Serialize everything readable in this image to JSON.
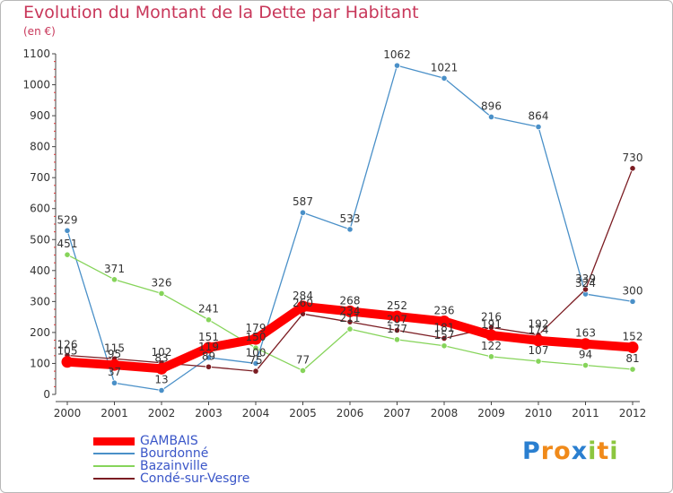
{
  "chart_data": {
    "type": "line",
    "title": "Evolution du Montant de la Dette par Habitant",
    "subtitle": "(en €)",
    "xlabel": "",
    "ylabel": "",
    "categories": [
      "2000",
      "2001",
      "2002",
      "2003",
      "2004",
      "2005",
      "2006",
      "2007",
      "2008",
      "2009",
      "2010",
      "2011",
      "2012"
    ],
    "ylim": [
      0,
      1100
    ],
    "yticks": [
      0,
      100,
      200,
      300,
      400,
      500,
      600,
      700,
      800,
      900,
      1000,
      1100
    ],
    "grid": false,
    "legend_position": "bottom-left",
    "series": [
      {
        "name": "GAMBAIS",
        "color": "#ff0000",
        "values": [
          105,
          95,
          83,
          151,
          179,
          284,
          268,
          252,
          236,
          191,
          174,
          163,
          152
        ]
      },
      {
        "name": "Bourdonné",
        "color": "#4a90c8",
        "values": [
          529,
          37,
          13,
          119,
          100,
          587,
          533,
          1062,
          1021,
          896,
          864,
          324,
          300
        ]
      },
      {
        "name": "Bazainville",
        "color": "#86d45a",
        "values": [
          451,
          371,
          326,
          241,
          150,
          77,
          211,
          177,
          157,
          122,
          107,
          94,
          81
        ]
      },
      {
        "name": "Condé-sur-Vesgre",
        "color": "#7b1c22",
        "values": [
          126,
          115,
          102,
          89,
          75,
          260,
          234,
          207,
          181,
          216,
          192,
          339,
          730
        ]
      }
    ]
  },
  "logo": {
    "text": "Proxiti",
    "letters": [
      {
        "ch": "P",
        "color": "#2a7fd0"
      },
      {
        "ch": "r",
        "color": "#f08a1a"
      },
      {
        "ch": "o",
        "color": "#f08a1a"
      },
      {
        "ch": "x",
        "color": "#2a7fd0"
      },
      {
        "ch": "i",
        "color": "#8cc63f"
      },
      {
        "ch": "t",
        "color": "#f08a1a"
      },
      {
        "ch": "i",
        "color": "#8cc63f"
      }
    ]
  }
}
